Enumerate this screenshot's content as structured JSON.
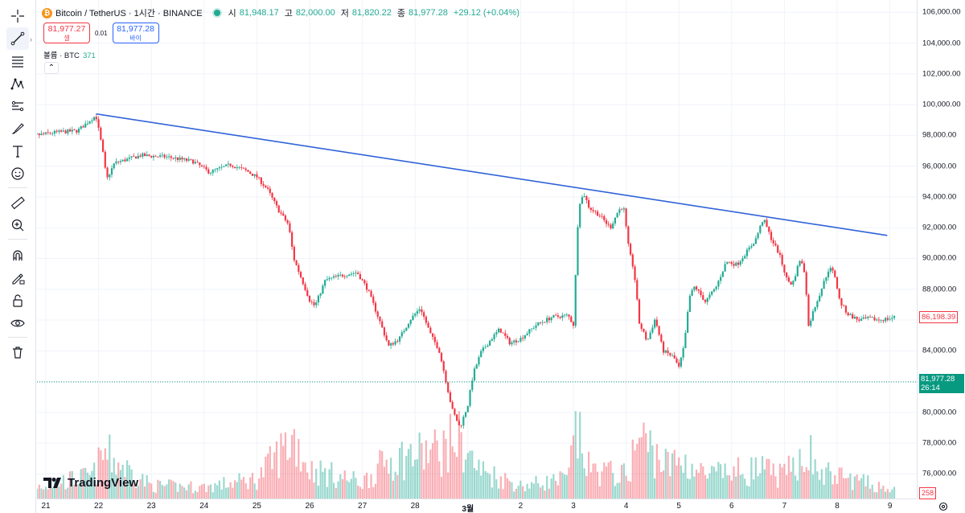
{
  "header": {
    "symbol_icon": "bitcoin-icon",
    "symbol": "Bitcoin / TetherUS · 1시간 · BINANCE",
    "ohlc": {
      "open_label": "시",
      "open": "81,948.17",
      "high_label": "고",
      "high": "82,000.00",
      "low_label": "저",
      "low": "81,820.22",
      "close_label": "종",
      "close": "81,977.28",
      "change": "+29.12 (+0.04%)"
    }
  },
  "order": {
    "sell_price": "81,977.27",
    "sell_label": "셀",
    "spread": "0.01",
    "buy_price": "81,977.28",
    "buy_label": "바이"
  },
  "volume_legend": {
    "label": "볼륨 · BTC",
    "value": "371"
  },
  "price_tags": {
    "last": "81,977.28",
    "countdown": "26:14",
    "ref": "86,198.39",
    "volume": "258"
  },
  "watermark": "TradingView",
  "colors": {
    "up": "#22ab94",
    "down": "#f23645",
    "trendline": "#2f63d8",
    "last_price": "#089981"
  },
  "toolbar_icons": [
    "crosshair-icon",
    "trendline-icon",
    "fib-icon",
    "pattern-icon",
    "projection-icon",
    "brush-icon",
    "text-icon",
    "emoji-icon",
    "ruler-icon",
    "zoom-in-icon",
    "magnet-icon",
    "lock-drawing-icon",
    "lock-icon",
    "eye-icon",
    "trash-icon"
  ],
  "chart_data": {
    "type": "candlestick",
    "symbol": "BTCUSDT",
    "interval": "1h",
    "y_axis": {
      "ticks": [
        "106,000.00",
        "104,000.00",
        "102,000.00",
        "100,000.00",
        "98,000.00",
        "96,000.00",
        "94,000.00",
        "92,000.00",
        "90,000.00",
        "88,000.00",
        "86,000.00",
        "84,000.00",
        "82,000.00",
        "80,000.00",
        "78,000.00",
        "76,000.00"
      ],
      "ylim": [
        74400,
        106800
      ]
    },
    "x_axis": {
      "ticks": [
        "21",
        "22",
        "23",
        "24",
        "25",
        "26",
        "27",
        "28",
        "3월",
        "2",
        "3",
        "4",
        "5",
        "6",
        "7",
        "8",
        "9"
      ],
      "bold_ticks": [
        "3월"
      ]
    },
    "close_path": [
      [
        20.5,
        97800
      ],
      [
        20.8,
        98000
      ],
      [
        21.2,
        98200
      ],
      [
        21.6,
        98300
      ],
      [
        21.95,
        99300
      ],
      [
        22.05,
        97500
      ],
      [
        22.1,
        96500
      ],
      [
        22.15,
        95100
      ],
      [
        22.3,
        96200
      ],
      [
        22.8,
        96700
      ],
      [
        23.3,
        96600
      ],
      [
        23.8,
        96300
      ],
      [
        24.1,
        95600
      ],
      [
        24.5,
        96100
      ],
      [
        24.8,
        95700
      ],
      [
        25.0,
        95300
      ],
      [
        25.2,
        94500
      ],
      [
        25.4,
        93200
      ],
      [
        25.6,
        92200
      ],
      [
        25.7,
        90000
      ],
      [
        25.9,
        88200
      ],
      [
        26.0,
        87300
      ],
      [
        26.1,
        86900
      ],
      [
        26.3,
        88600
      ],
      [
        26.6,
        88900
      ],
      [
        26.9,
        89100
      ],
      [
        27.1,
        88000
      ],
      [
        27.3,
        86200
      ],
      [
        27.5,
        84300
      ],
      [
        27.7,
        84800
      ],
      [
        27.9,
        86000
      ],
      [
        28.1,
        86800
      ],
      [
        28.3,
        85000
      ],
      [
        28.45,
        84100
      ],
      [
        28.55,
        82600
      ],
      [
        28.7,
        80200
      ],
      [
        28.85,
        79000
      ],
      [
        29.0,
        80500
      ],
      [
        29.1,
        82500
      ],
      [
        29.25,
        83900
      ],
      [
        29.45,
        84800
      ],
      [
        29.6,
        85400
      ],
      [
        29.8,
        84500
      ],
      [
        30.0,
        84800
      ],
      [
        30.3,
        85700
      ],
      [
        30.6,
        86200
      ],
      [
        30.9,
        86300
      ],
      [
        31.0,
        85700
      ],
      [
        31.05,
        89500
      ],
      [
        31.1,
        93500
      ],
      [
        31.2,
        94200
      ],
      [
        31.3,
        93300
      ],
      [
        31.5,
        92800
      ],
      [
        31.7,
        92000
      ],
      [
        31.85,
        93100
      ],
      [
        31.95,
        93400
      ],
      [
        32.05,
        90600
      ],
      [
        32.15,
        89200
      ],
      [
        32.25,
        85800
      ],
      [
        32.4,
        84600
      ],
      [
        32.55,
        86100
      ],
      [
        32.7,
        84000
      ],
      [
        32.9,
        83600
      ],
      [
        33.0,
        82900
      ],
      [
        33.1,
        84300
      ],
      [
        33.2,
        87500
      ],
      [
        33.3,
        88200
      ],
      [
        33.5,
        87200
      ],
      [
        33.7,
        88100
      ],
      [
        33.9,
        89800
      ],
      [
        34.1,
        89600
      ],
      [
        34.3,
        90500
      ],
      [
        34.45,
        91200
      ],
      [
        34.6,
        92600
      ],
      [
        34.75,
        91300
      ],
      [
        34.9,
        90300
      ],
      [
        35.05,
        88600
      ],
      [
        35.15,
        88300
      ],
      [
        35.3,
        90000
      ],
      [
        35.4,
        88900
      ],
      [
        35.45,
        85500
      ],
      [
        35.55,
        86600
      ],
      [
        35.7,
        88000
      ],
      [
        35.85,
        89400
      ],
      [
        35.95,
        89000
      ],
      [
        36.05,
        87200
      ],
      [
        36.2,
        86400
      ],
      [
        36.4,
        86000
      ],
      [
        36.6,
        86100
      ],
      [
        36.8,
        86000
      ],
      [
        37.0,
        86100
      ],
      [
        37.1,
        86198
      ]
    ],
    "volume_path": [
      [
        20.5,
        300
      ],
      [
        21.9,
        700
      ],
      [
        22.1,
        1400
      ],
      [
        23.0,
        400
      ],
      [
        24.0,
        350
      ],
      [
        25.0,
        600
      ],
      [
        25.7,
        1900
      ],
      [
        26.0,
        900
      ],
      [
        27.0,
        500
      ],
      [
        27.5,
        1200
      ],
      [
        28.5,
        1500
      ],
      [
        28.8,
        1900
      ],
      [
        29.2,
        900
      ],
      [
        30.0,
        400
      ],
      [
        30.9,
        600
      ],
      [
        31.05,
        2100
      ],
      [
        31.3,
        900
      ],
      [
        32.0,
        700
      ],
      [
        32.25,
        1900
      ],
      [
        32.8,
        1000
      ],
      [
        33.05,
        1200
      ],
      [
        33.5,
        700
      ],
      [
        34.5,
        900
      ],
      [
        35.0,
        700
      ],
      [
        35.45,
        1600
      ],
      [
        35.6,
        800
      ],
      [
        36.0,
        700
      ],
      [
        37.1,
        258
      ]
    ],
    "trendline": {
      "from": [
        21.95,
        99400
      ],
      "to": [
        36.95,
        91500
      ]
    },
    "last_price": 81977.28,
    "reference_price": 86198.39,
    "volume_last": 258
  }
}
